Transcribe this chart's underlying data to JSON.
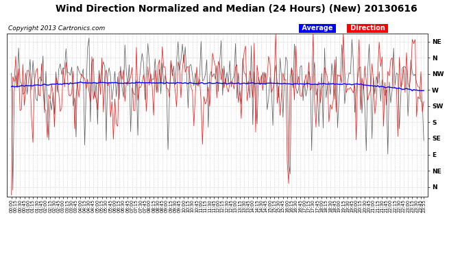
{
  "title": "Wind Direction Normalized and Median (24 Hours) (New) 20130616",
  "copyright": "Copyright 2013 Cartronics.com",
  "legend_labels": [
    "Average",
    "Direction"
  ],
  "legend_colors": [
    "#0000ff",
    "#ff0000"
  ],
  "ytick_labels": [
    "NE",
    "N",
    "NW",
    "W",
    "SW",
    "S",
    "SE",
    "E",
    "NE",
    "N"
  ],
  "ytick_values": [
    0,
    1,
    2,
    3,
    4,
    5,
    6,
    7,
    8,
    9
  ],
  "background_color": "#ffffff",
  "grid_color": "#bbbbbb",
  "title_fontsize": 10,
  "copyright_fontsize": 6.5,
  "tick_fontsize": 6.5,
  "plot_bg": "#ffffff",
  "n_points": 288,
  "blue_base": 2.5,
  "red_base": 2.4
}
